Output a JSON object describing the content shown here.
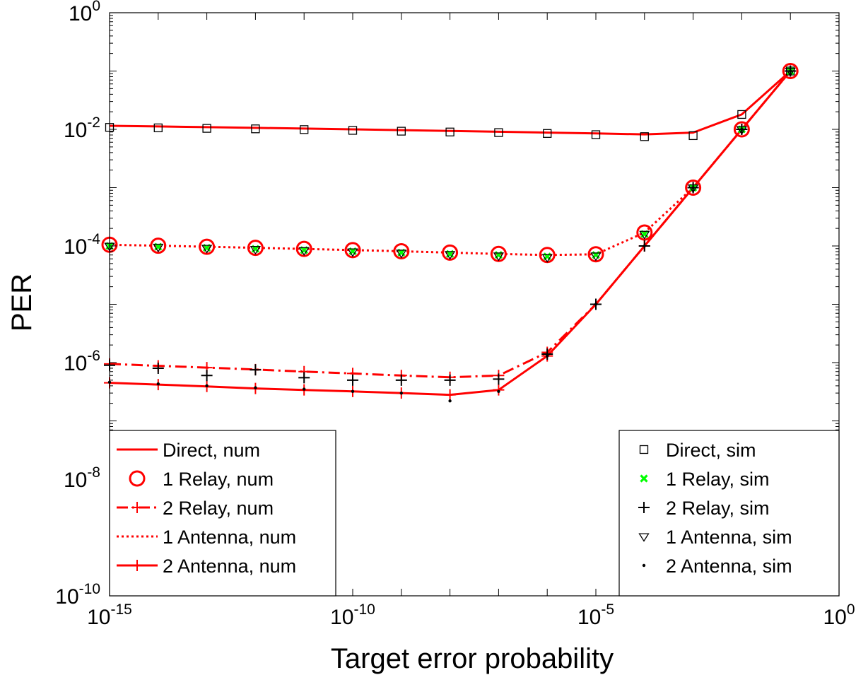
{
  "chart_data": {
    "type": "line",
    "xlabel": "Target error probability",
    "ylabel": "PER",
    "xscale": "log",
    "yscale": "log",
    "xlim": [
      1e-15,
      1
    ],
    "ylim": [
      1e-10,
      1
    ],
    "grid": false,
    "x_ticks": [
      {
        "base": "10",
        "exp": "-15"
      },
      {
        "base": "10",
        "exp": "-10"
      },
      {
        "base": "10",
        "exp": "-5"
      },
      {
        "base": "10",
        "exp": "0"
      }
    ],
    "y_ticks": [
      {
        "base": "10",
        "exp": "-10"
      },
      {
        "base": "10",
        "exp": "-8"
      },
      {
        "base": "10",
        "exp": "-6"
      },
      {
        "base": "10",
        "exp": "-4"
      },
      {
        "base": "10",
        "exp": "-2"
      },
      {
        "base": "10",
        "exp": "0"
      }
    ],
    "x": [
      1e-15,
      1e-14,
      1e-13,
      1e-12,
      1e-11,
      1e-10,
      1e-09,
      1e-08,
      1e-07,
      1e-06,
      1e-05,
      0.0001,
      0.001,
      0.01,
      0.1
    ],
    "legend_left": {
      "placement": "bottom-left",
      "entries": [
        "Direct, num",
        "1 Relay, num",
        "2 Relay, num",
        "1 Antenna, num",
        "2 Antenna, num"
      ]
    },
    "legend_right": {
      "placement": "bottom-right",
      "entries": [
        "Direct, sim",
        "1 Relay, sim",
        "2 Relay, sim",
        "1 Antenna, sim",
        "2 Antenna, sim"
      ]
    },
    "series": [
      {
        "name": "Direct, num",
        "style": "solid",
        "marker": "none",
        "color": "#ff0000",
        "values": [
          0.0115,
          0.0112,
          0.0109,
          0.0106,
          0.0103,
          0.01,
          0.0097,
          0.0094,
          0.0091,
          0.0088,
          0.0085,
          0.0082,
          0.0088,
          0.018,
          0.1
        ]
      },
      {
        "name": "1 Relay, num",
        "style": "none",
        "marker": "circle",
        "color": "#ff0000",
        "values": [
          0.000105,
          0.000101,
          9.7e-05,
          9.3e-05,
          8.9e-05,
          8.5e-05,
          8.1e-05,
          7.7e-05,
          7.3e-05,
          7e-05,
          7.2e-05,
          0.00017,
          0.001,
          0.01,
          0.1
        ]
      },
      {
        "name": "2 Relay, num",
        "style": "dashdot",
        "marker": "plus",
        "color": "#ff0000",
        "values": [
          9.5e-07,
          8.8e-07,
          8.2e-07,
          7.6e-07,
          7e-07,
          6.5e-07,
          6e-07,
          5.6e-07,
          6e-07,
          1.5e-06,
          1e-05,
          0.0001,
          0.001,
          0.01,
          0.1
        ]
      },
      {
        "name": "1 Antenna, num",
        "style": "dotted",
        "marker": "none",
        "color": "#ff0000",
        "values": [
          0.000105,
          0.000101,
          9.7e-05,
          9.3e-05,
          8.9e-05,
          8.5e-05,
          8.1e-05,
          7.7e-05,
          7.3e-05,
          7e-05,
          7.2e-05,
          0.00017,
          0.001,
          0.01,
          0.1
        ]
      },
      {
        "name": "2 Antenna, num",
        "style": "solid",
        "marker": "plus",
        "color": "#ff0000",
        "values": [
          4.5e-07,
          4.2e-07,
          3.9e-07,
          3.6e-07,
          3.4e-07,
          3.2e-07,
          3e-07,
          2.8e-07,
          3.4e-07,
          1.3e-06,
          1e-05,
          0.0001,
          0.001,
          0.01,
          0.1
        ]
      },
      {
        "name": "Direct, sim",
        "style": "none",
        "marker": "square",
        "color": "#000000",
        "values": [
          0.0108,
          0.0106,
          0.0104,
          0.0102,
          0.0099,
          0.0096,
          0.0093,
          0.009,
          0.0088,
          0.0085,
          0.0081,
          0.0075,
          0.0078,
          0.018,
          0.1
        ]
      },
      {
        "name": "1 Relay, sim",
        "style": "none",
        "marker": "x",
        "color": "#00ff00",
        "values": [
          0.0001,
          9.7e-05,
          9.3e-05,
          8.9e-05,
          8.5e-05,
          8.1e-05,
          7.7e-05,
          7.3e-05,
          7e-05,
          6.6e-05,
          7e-05,
          0.00016,
          0.001,
          0.01,
          0.1
        ]
      },
      {
        "name": "2 Relay, sim",
        "style": "none",
        "marker": "plus",
        "color": "#000000",
        "values": [
          9e-07,
          8e-07,
          6e-07,
          7.5e-07,
          5.5e-07,
          5e-07,
          5e-07,
          5e-07,
          5.2e-07,
          1.4e-06,
          1e-05,
          0.0001,
          0.001,
          0.01,
          0.1
        ]
      },
      {
        "name": "1 Antenna, sim",
        "style": "none",
        "marker": "triangle-down",
        "color": "#000000",
        "values": [
          0.0001,
          9.6e-05,
          9.2e-05,
          8.8e-05,
          8.4e-05,
          8e-05,
          7.6e-05,
          7.2e-05,
          6.8e-05,
          6.4e-05,
          6.8e-05,
          0.00016,
          0.001,
          0.01,
          0.1
        ]
      },
      {
        "name": "2 Antenna, sim",
        "style": "none",
        "marker": "dot",
        "color": "#000000",
        "values": [
          4.6e-07,
          4.3e-07,
          4e-07,
          3.7e-07,
          3.5e-07,
          3.2e-07,
          3e-07,
          2.2e-07,
          3.2e-07,
          1.3e-06,
          1e-05,
          0.0001,
          0.001,
          0.01,
          0.1
        ]
      }
    ]
  }
}
